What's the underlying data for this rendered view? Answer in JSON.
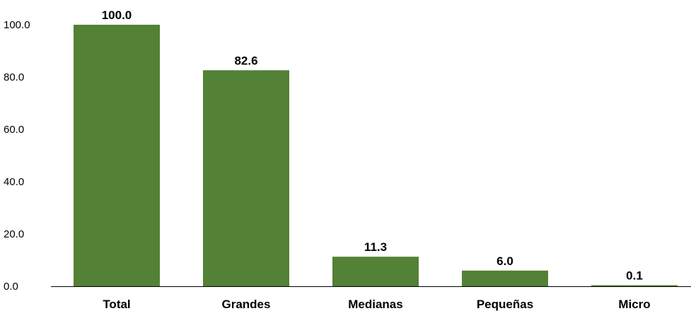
{
  "chart_data": {
    "type": "bar",
    "title": "",
    "xlabel": "",
    "ylabel": "",
    "categories": [
      "Total",
      "Grandes",
      "Medianas",
      "Pequeñas",
      "Micro"
    ],
    "values": [
      100.0,
      82.6,
      11.3,
      6.0,
      0.1
    ],
    "value_labels": [
      "100.0",
      "82.6",
      "11.3",
      "6.0",
      "0.1"
    ],
    "ylim": [
      0,
      100
    ],
    "yticks": [
      0,
      20,
      40,
      60,
      80,
      100
    ],
    "ytick_labels": [
      "0.0",
      "20.0",
      "40.0",
      "60.0",
      "80.0",
      "100.0"
    ],
    "grid": false,
    "legend": "none",
    "bar_color": "#538135"
  }
}
